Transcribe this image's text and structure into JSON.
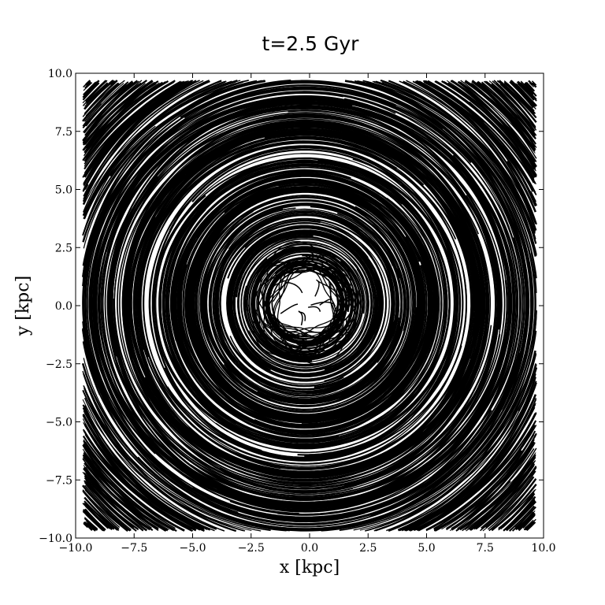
{
  "chart_data": {
    "type": "line",
    "title": "t=2.5 Gyr",
    "xlabel": "x [kpc]",
    "ylabel": "y [kpc]",
    "xlim": [
      -10.0,
      10.0
    ],
    "ylim": [
      -10.0,
      10.0
    ],
    "x_ticks": [
      "−10.0",
      "−7.5",
      "−5.0",
      "−2.5",
      "0.0",
      "2.5",
      "5.0",
      "7.5",
      "10.0"
    ],
    "y_ticks": [
      "−10.0",
      "−7.5",
      "−5.0",
      "−2.5",
      "0.0",
      "2.5",
      "5.0",
      "7.5",
      "10.0"
    ],
    "grid": false,
    "legend": "none",
    "line_color": "#000000",
    "trajectory_region": {
      "x_min": -9.7,
      "x_max": 9.7,
      "y_min": -9.7,
      "y_max": 9.7,
      "inner_hole_center": [
        -0.2,
        0.1
      ],
      "inner_hole_radius_x": 1.5,
      "inner_hole_radius_y": 1.0,
      "orbit_radius_range": [
        1.3,
        13.7
      ]
    }
  }
}
